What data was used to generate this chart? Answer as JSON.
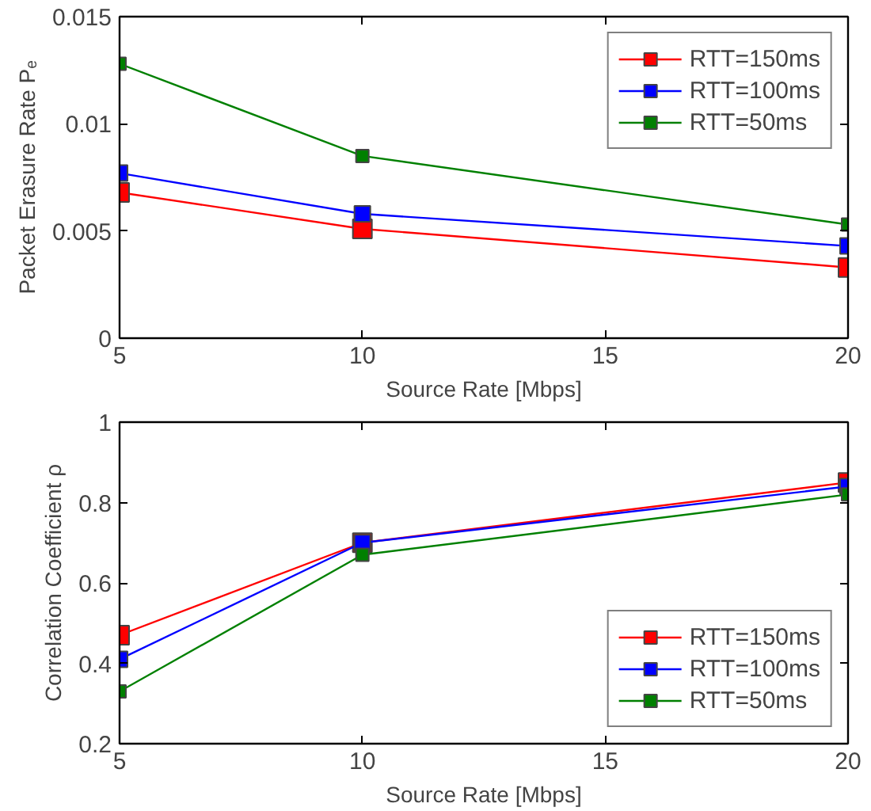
{
  "chart_data": [
    {
      "type": "line",
      "xlabel": "Source Rate [Mbps]",
      "ylabel": "Packet Erasure Rate Pₑ",
      "x": [
        5,
        10,
        20
      ],
      "xlim": [
        5,
        20
      ],
      "xticks": [
        5,
        10,
        15,
        20
      ],
      "ylim": [
        0,
        0.015
      ],
      "yticks": [
        0,
        0.005,
        0.01,
        0.015
      ],
      "marker": "square",
      "legend": "top right",
      "grid": false,
      "series": [
        {
          "name": "RTT=150ms",
          "color": "#ff0000",
          "values": [
            0.0068,
            0.0051,
            0.0033
          ]
        },
        {
          "name": "RTT=100ms",
          "color": "#0000ff",
          "values": [
            0.0077,
            0.0058,
            0.0043
          ]
        },
        {
          "name": "RTT=50ms",
          "color": "#008000",
          "values": [
            0.0128,
            0.0085,
            0.0053
          ]
        }
      ]
    },
    {
      "type": "line",
      "xlabel": "Source Rate [Mbps]",
      "ylabel": "Correlation Coefficient ρ",
      "x": [
        5,
        10,
        20
      ],
      "xlim": [
        5,
        20
      ],
      "xticks": [
        5,
        10,
        15,
        20
      ],
      "ylim": [
        0.2,
        1
      ],
      "yticks": [
        0.2,
        0.4,
        0.6,
        0.8,
        1
      ],
      "marker": "square",
      "legend": "bottom right",
      "grid": false,
      "series": [
        {
          "name": "RTT=150ms",
          "color": "#ff0000",
          "values": [
            0.47,
            0.7,
            0.85
          ]
        },
        {
          "name": "RTT=100ms",
          "color": "#0000ff",
          "values": [
            0.41,
            0.7,
            0.84
          ]
        },
        {
          "name": "RTT=50ms",
          "color": "#008000",
          "values": [
            0.33,
            0.67,
            0.82
          ]
        }
      ]
    }
  ]
}
